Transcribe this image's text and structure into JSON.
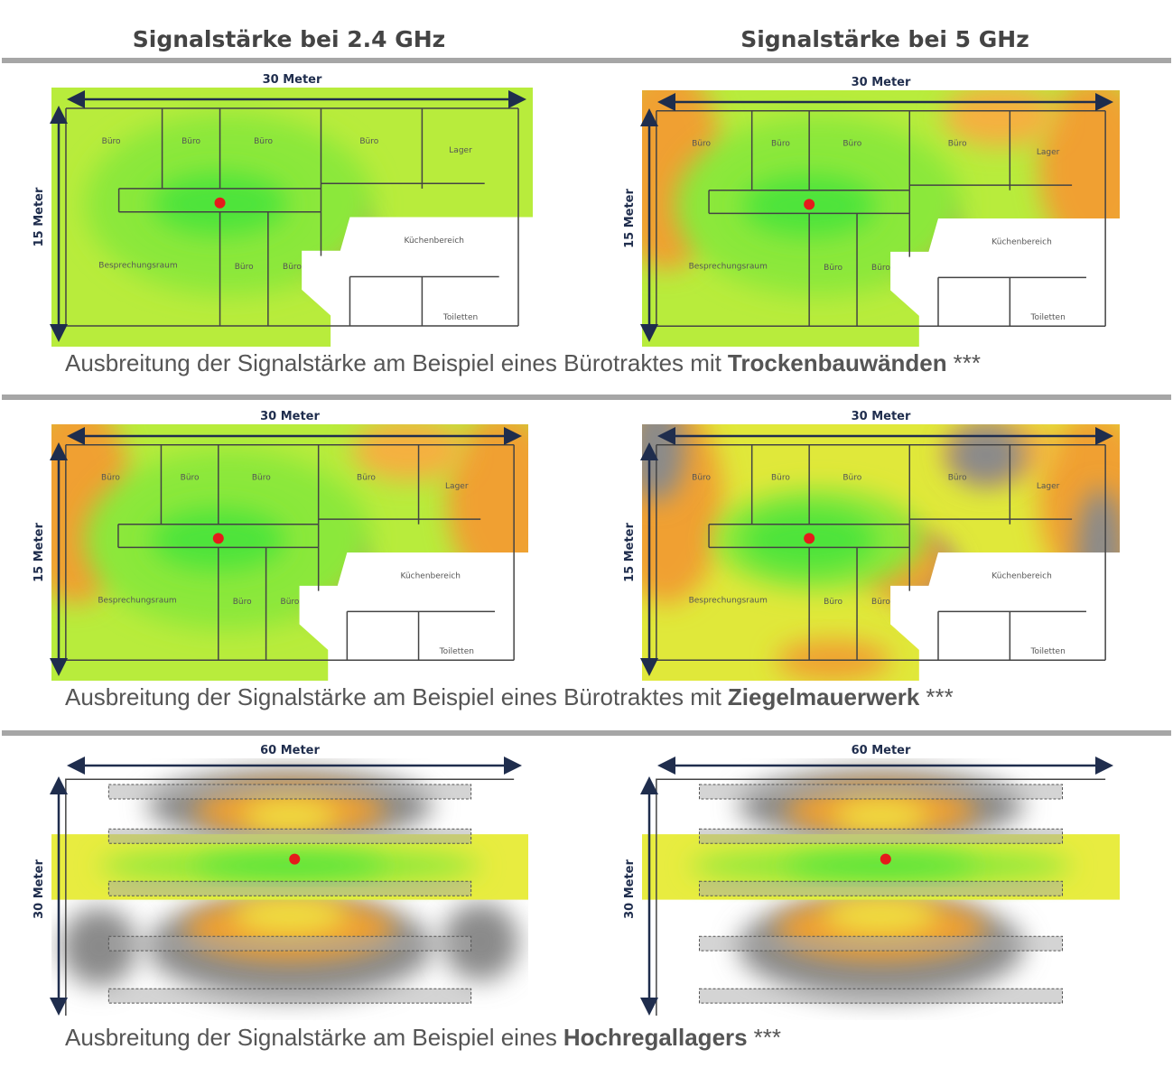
{
  "headers": [
    "Signalstärke bei 2.4 GHz",
    "Signalstärke bei 5 GHz"
  ],
  "sections": [
    {
      "caption": {
        "text": "Ausbreitung der Signalstärke am Beispiel eines Bürotraktes mit",
        "bold": "Trockenbauwänden",
        "suffix": "***"
      },
      "panels": [
        {
          "width_label": "30 Meter",
          "height_label": "15 Meter",
          "rooms": [
            "Büro",
            "Büro",
            "Büro",
            "Büro",
            "Lager",
            "Küchenbereich",
            "Besprechungsraum",
            "Büro",
            "Büro",
            "Toiletten"
          ]
        },
        {
          "width_label": "30 Meter",
          "height_label": "15 Meter",
          "rooms": [
            "Büro",
            "Büro",
            "Büro",
            "Büro",
            "Lager",
            "Küchenbereich",
            "Besprechungsraum",
            "Büro",
            "Büro",
            "Toiletten"
          ]
        }
      ]
    },
    {
      "caption": {
        "text": "Ausbreitung der Signalstärke am Beispiel eines Bürotraktes mit",
        "bold": "Ziegelmauerwerk",
        "suffix": "***"
      },
      "panels": [
        {
          "width_label": "30 Meter",
          "height_label": "15 Meter",
          "rooms": [
            "Büro",
            "Büro",
            "Büro",
            "Büro",
            "Lager",
            "Küchenbereich",
            "Besprechungsraum",
            "Büro",
            "Büro",
            "Toiletten"
          ]
        },
        {
          "width_label": "30 Meter",
          "height_label": "15 Meter",
          "rooms": [
            "Büro",
            "Büro",
            "Büro",
            "Büro",
            "Lager",
            "Küchenbereich",
            "Besprechungsraum",
            "Büro",
            "Büro",
            "Toiletten"
          ]
        }
      ]
    },
    {
      "caption": {
        "text": "Ausbreitung der Signalstärke am Beispiel eines",
        "bold": "Hochregallagers",
        "suffix": "***"
      },
      "panels": [
        {
          "width_label": "60 Meter",
          "height_label": "30 Meter"
        },
        {
          "width_label": "60 Meter",
          "height_label": "30 Meter"
        }
      ]
    }
  ]
}
